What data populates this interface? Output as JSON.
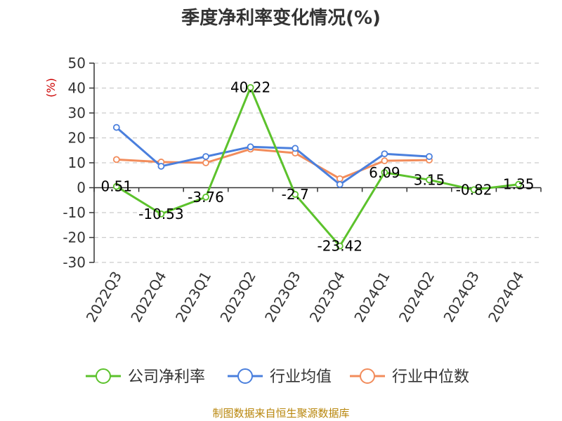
{
  "chart_data": {
    "type": "line",
    "title": "季度净利率变化情况(%)",
    "ylabel": "(%)",
    "categories": [
      "2022Q3",
      "2022Q4",
      "2023Q1",
      "2023Q2",
      "2023Q3",
      "2023Q4",
      "2024Q1",
      "2024Q2",
      "2024Q3",
      "2024Q4"
    ],
    "yticks": [
      50,
      40,
      30,
      20,
      10,
      0,
      -10,
      -20,
      -30
    ],
    "ylim": [
      -30,
      50
    ],
    "grid": true,
    "legend_position": "bottom",
    "series": [
      {
        "name": "公司净利率",
        "color": "#5cc22c",
        "values": [
          0.51,
          -10.53,
          -3.76,
          40.22,
          -2.7,
          -23.42,
          6.09,
          3.15,
          -0.82,
          1.35
        ],
        "labels": [
          "0.51",
          "-10.53",
          "-3.76",
          "40.22",
          "-2.7",
          "-23.42",
          "6.09",
          "3.15",
          "-0.82",
          "1.35"
        ]
      },
      {
        "name": "行业均值",
        "color": "#4a7fdd",
        "values": [
          24.2,
          8.6,
          12.5,
          16.4,
          15.8,
          1.3,
          13.6,
          12.5,
          null,
          null
        ]
      },
      {
        "name": "行业中位数",
        "color": "#f28c5b",
        "values": [
          11.3,
          10.3,
          10.0,
          15.5,
          13.9,
          3.6,
          10.8,
          11.1,
          null,
          null
        ]
      }
    ]
  },
  "source": "制图数据来自恒生聚源数据库"
}
